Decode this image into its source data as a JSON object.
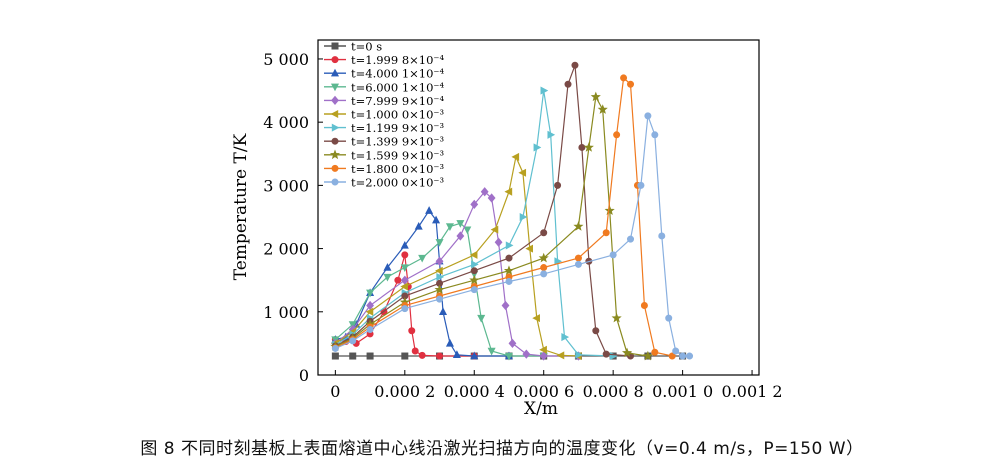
{
  "caption": "图 8 不同时刻基板上表面熔道中心线沿激光扫描方向的温度变化（v=0.4 m/s，P=150 W）",
  "chart_data": {
    "type": "line",
    "title": "",
    "xlabel": "X/m",
    "ylabel": "Temperature T/K",
    "xlim": [
      -5e-05,
      0.00122
    ],
    "ylim": [
      0,
      5300
    ],
    "xticks": [
      0,
      0.0002,
      0.0004,
      0.0006,
      0.0008,
      0.001,
      0.0012
    ],
    "xtick_labels": [
      "0",
      "0.000 2",
      "0.000 4",
      "0.000 6",
      "0.000 8",
      "0.001 0",
      "0.001 2"
    ],
    "yticks": [
      0,
      1000,
      2000,
      3000,
      4000,
      5000
    ],
    "ytick_labels": [
      "0",
      "1 000",
      "2 000",
      "3 000",
      "4 000",
      "5 000"
    ],
    "grid": false,
    "legend_position": "top-left",
    "series": [
      {
        "name": "t=0 s",
        "color": "#555555",
        "marker": "square",
        "x": [
          0,
          5e-05,
          0.0001,
          0.0002,
          0.0003,
          0.0004,
          0.0005,
          0.0006,
          0.0007,
          0.0008,
          0.0009,
          0.001
        ],
        "y": [
          300,
          300,
          300,
          300,
          300,
          300,
          300,
          300,
          300,
          300,
          300,
          300
        ]
      },
      {
        "name": "t=1.999 8×10⁻⁴",
        "color": "#e03040",
        "marker": "circle",
        "x": [
          0,
          3e-05,
          6e-05,
          0.0001,
          0.00014,
          0.00018,
          0.0002,
          0.00021,
          0.00022,
          0.00023,
          0.00025,
          0.0003,
          0.0004
        ],
        "y": [
          560,
          530,
          500,
          650,
          1000,
          1500,
          1900,
          1400,
          700,
          380,
          310,
          300,
          300
        ]
      },
      {
        "name": "t=4.000 1×10⁻⁴",
        "color": "#2a5cb8",
        "marker": "triangle-up",
        "x": [
          0,
          3e-05,
          6e-05,
          0.0001,
          0.00015,
          0.0002,
          0.00024,
          0.00027,
          0.00029,
          0.0003,
          0.00031,
          0.00033,
          0.00035,
          0.0004,
          0.0005
        ],
        "y": [
          560,
          600,
          800,
          1300,
          1700,
          2050,
          2350,
          2600,
          2450,
          1800,
          1000,
          500,
          320,
          300,
          300
        ]
      },
      {
        "name": "t=6.000 1×10⁻⁴",
        "color": "#5cb890",
        "marker": "triangle-down",
        "x": [
          0,
          5e-05,
          0.0001,
          0.00015,
          0.0002,
          0.00025,
          0.0003,
          0.00033,
          0.00036,
          0.00038,
          0.0004,
          0.00042,
          0.00045,
          0.0005,
          0.0006
        ],
        "y": [
          560,
          800,
          1300,
          1550,
          1700,
          1850,
          2100,
          2350,
          2400,
          2300,
          1600,
          900,
          380,
          300,
          300
        ]
      },
      {
        "name": "t=7.999 9×10⁻⁴",
        "color": "#a070c8",
        "marker": "diamond",
        "x": [
          0,
          5e-05,
          0.0001,
          0.0002,
          0.0003,
          0.00036,
          0.0004,
          0.00043,
          0.00045,
          0.00047,
          0.00049,
          0.00051,
          0.00055,
          0.0006,
          0.0007
        ],
        "y": [
          500,
          720,
          1100,
          1500,
          1800,
          2200,
          2700,
          2900,
          2800,
          2100,
          1100,
          500,
          330,
          300,
          300
        ]
      },
      {
        "name": "t=1.000 0×10⁻³",
        "color": "#b8a020",
        "marker": "triangle-left",
        "x": [
          0,
          5e-05,
          0.0001,
          0.0002,
          0.0003,
          0.0004,
          0.00046,
          0.0005,
          0.00052,
          0.00054,
          0.00056,
          0.00058,
          0.0006,
          0.00065,
          0.0007
        ],
        "y": [
          500,
          680,
          1000,
          1400,
          1650,
          1900,
          2300,
          2900,
          3450,
          3200,
          2000,
          900,
          400,
          310,
          300
        ]
      },
      {
        "name": "t=1.199 9×10⁻³",
        "color": "#60c0d0",
        "marker": "triangle-right",
        "x": [
          0,
          5e-05,
          0.0001,
          0.0002,
          0.0003,
          0.0004,
          0.0005,
          0.00054,
          0.00058,
          0.0006,
          0.00062,
          0.00064,
          0.00066,
          0.0007,
          0.0008
        ],
        "y": [
          480,
          640,
          900,
          1300,
          1550,
          1750,
          2050,
          2500,
          3600,
          4500,
          3800,
          1800,
          600,
          320,
          300
        ]
      },
      {
        "name": "t=1.399 9×10⁻³",
        "color": "#7a4a46",
        "marker": "circle",
        "x": [
          0,
          5e-05,
          0.0001,
          0.0002,
          0.0003,
          0.0004,
          0.0005,
          0.0006,
          0.00064,
          0.00067,
          0.00069,
          0.00071,
          0.00073,
          0.00075,
          0.00078,
          0.00085
        ],
        "y": [
          460,
          600,
          850,
          1250,
          1450,
          1650,
          1850,
          2250,
          3000,
          4600,
          4900,
          3600,
          1800,
          700,
          330,
          300
        ]
      },
      {
        "name": "t=1.599 9×10⁻³",
        "color": "#8a8a20",
        "marker": "star",
        "x": [
          0,
          5e-05,
          0.0001,
          0.0002,
          0.0003,
          0.0004,
          0.0005,
          0.0006,
          0.0007,
          0.00073,
          0.00075,
          0.00077,
          0.00079,
          0.00081,
          0.00084,
          0.0009
        ],
        "y": [
          450,
          580,
          800,
          1150,
          1350,
          1500,
          1650,
          1850,
          2350,
          3600,
          4400,
          4200,
          2600,
          900,
          350,
          300
        ]
      },
      {
        "name": "t=1.800 0×10⁻³",
        "color": "#f07a20",
        "marker": "circle",
        "x": [
          0,
          5e-05,
          0.0001,
          0.0002,
          0.0003,
          0.0004,
          0.0005,
          0.0006,
          0.0007,
          0.00078,
          0.00081,
          0.00083,
          0.00085,
          0.00087,
          0.00089,
          0.00092,
          0.00097
        ],
        "y": [
          430,
          560,
          760,
          1100,
          1250,
          1400,
          1550,
          1700,
          1850,
          2250,
          3800,
          4700,
          4600,
          3000,
          1100,
          360,
          300
        ]
      },
      {
        "name": "t=2.000 0×10⁻³",
        "color": "#8ab0e0",
        "marker": "circle",
        "x": [
          0,
          5e-05,
          0.0001,
          0.0002,
          0.0003,
          0.0004,
          0.0005,
          0.0006,
          0.0007,
          0.0008,
          0.00085,
          0.00088,
          0.0009,
          0.00092,
          0.00094,
          0.00096,
          0.00098,
          0.001,
          0.00102
        ],
        "y": [
          420,
          540,
          720,
          1050,
          1200,
          1350,
          1480,
          1600,
          1750,
          1900,
          2150,
          3000,
          4100,
          3800,
          2200,
          900,
          380,
          300,
          300
        ]
      }
    ]
  }
}
